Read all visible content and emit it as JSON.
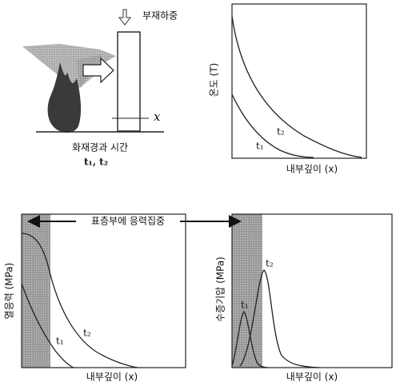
{
  "illustration": {
    "load_label": "부재하중",
    "depth_symbol": "x",
    "caption": "화재경과 시간",
    "caption_times": "t₁, t₂"
  },
  "temperature_panel": {
    "y_label": "온도 (T)",
    "x_label": "내부깊이 (x)",
    "curve_labels": [
      "t₁",
      "t₂"
    ]
  },
  "stress_banner": "표층부에 응력집중",
  "stress_panel": {
    "y_label": "열응력 (MPa)",
    "x_label": "내부깊이 (x)",
    "curve_labels": [
      "t₁",
      "t₂"
    ]
  },
  "vapor_panel": {
    "y_label": "수증기압 (MPa)",
    "x_label": "내부깊이 (x)",
    "curve_labels": [
      "t₁",
      "t₂"
    ]
  }
}
